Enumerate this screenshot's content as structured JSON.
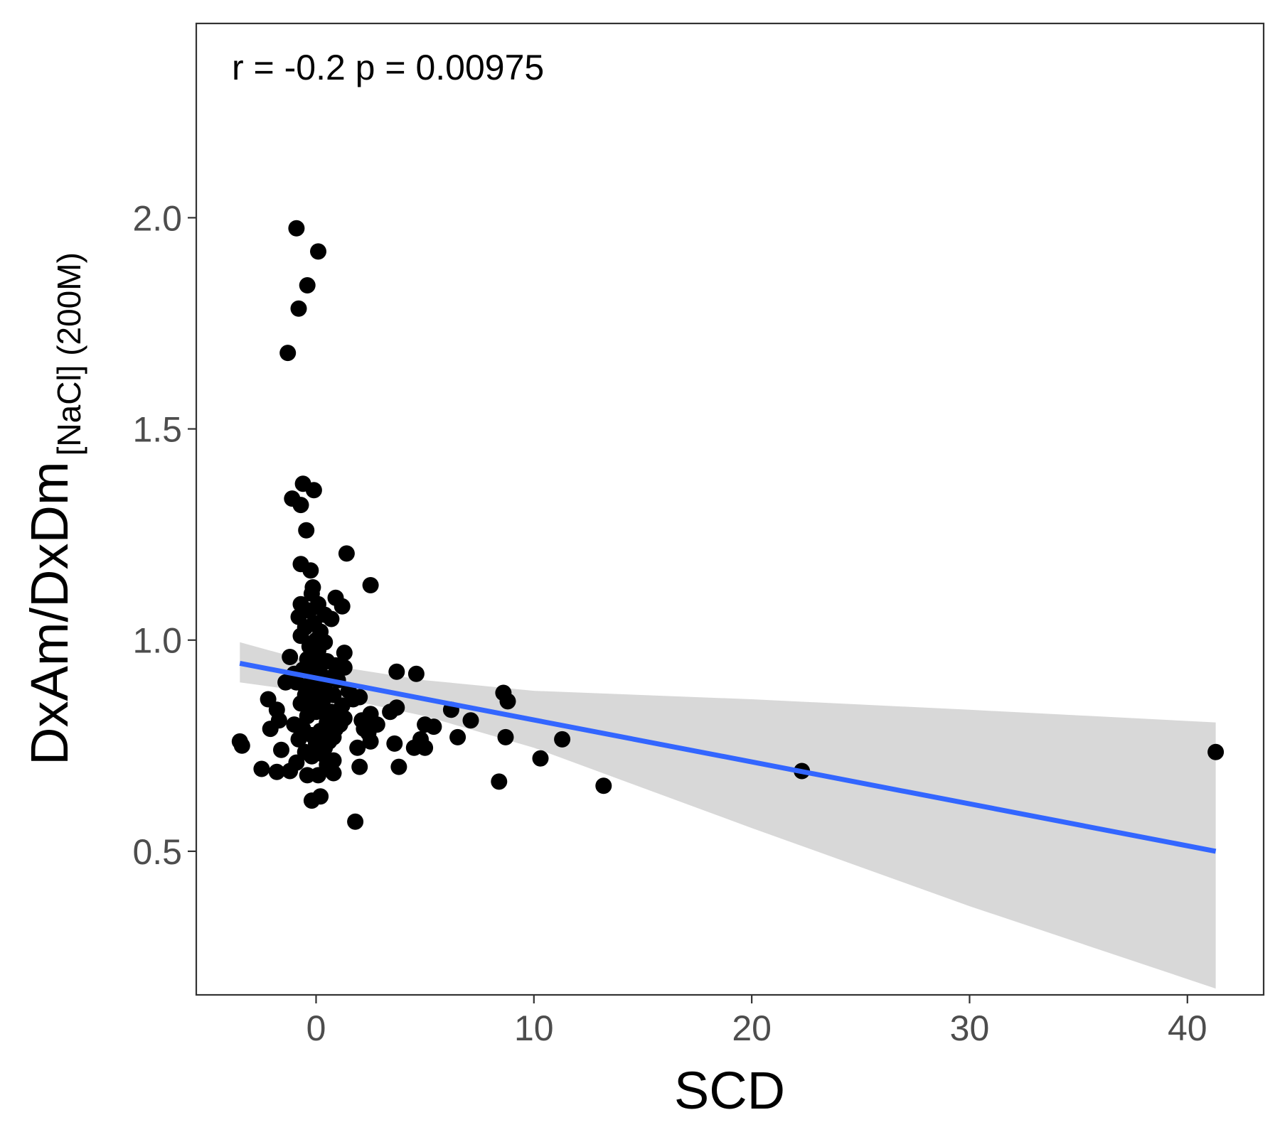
{
  "chart_data": {
    "type": "scatter",
    "title": "",
    "annotation": "r =  -0.2  p =  0.00975",
    "xlabel": "SCD",
    "ylabel": {
      "main": "DxAm/DxDm",
      "subscript": "[NaCl] (200M)"
    },
    "xlim": [
      -5.5,
      43.5
    ],
    "ylim": [
      0.16,
      2.46
    ],
    "x_ticks": [
      0,
      10,
      20,
      30,
      40
    ],
    "x_tick_labels": [
      "0",
      "10",
      "20",
      "30",
      "40"
    ],
    "y_ticks": [
      0.5,
      1.0,
      1.5,
      2.0
    ],
    "y_tick_labels": [
      "0.5",
      "1.0",
      "1.5",
      "2.0"
    ],
    "grid": false,
    "colors": {
      "points": "#000000",
      "fit_line": "#3366ff",
      "confidence_band": "#d6d6d6",
      "panel_border": "#333333"
    },
    "fit": {
      "x": [
        -3.5,
        41.3
      ],
      "y": [
        0.945,
        0.5
      ]
    },
    "band": {
      "x": [
        -3.5,
        0,
        5,
        10,
        20,
        30,
        41.3
      ],
      "upper": [
        0.995,
        0.945,
        0.905,
        0.88,
        0.86,
        0.835,
        0.805
      ],
      "lower": [
        0.9,
        0.875,
        0.82,
        0.745,
        0.555,
        0.37,
        0.175
      ]
    },
    "points": [
      {
        "x": -0.9,
        "y": 1.975
      },
      {
        "x": 0.1,
        "y": 1.92
      },
      {
        "x": -0.4,
        "y": 1.84
      },
      {
        "x": -0.8,
        "y": 1.785
      },
      {
        "x": -1.3,
        "y": 1.68
      },
      {
        "x": -0.6,
        "y": 1.37
      },
      {
        "x": -0.1,
        "y": 1.355
      },
      {
        "x": -1.1,
        "y": 1.335
      },
      {
        "x": -0.7,
        "y": 1.32
      },
      {
        "x": -0.45,
        "y": 1.26
      },
      {
        "x": 1.4,
        "y": 1.205
      },
      {
        "x": -0.7,
        "y": 1.18
      },
      {
        "x": -0.25,
        "y": 1.165
      },
      {
        "x": 2.5,
        "y": 1.13
      },
      {
        "x": -0.15,
        "y": 1.125
      },
      {
        "x": -0.2,
        "y": 1.11
      },
      {
        "x": 0.9,
        "y": 1.1
      },
      {
        "x": -0.7,
        "y": 1.085
      },
      {
        "x": 0.1,
        "y": 1.085
      },
      {
        "x": 1.2,
        "y": 1.08
      },
      {
        "x": -0.3,
        "y": 1.07
      },
      {
        "x": 0.4,
        "y": 1.06
      },
      {
        "x": -0.8,
        "y": 1.055
      },
      {
        "x": 0.7,
        "y": 1.05
      },
      {
        "x": -0.1,
        "y": 1.04
      },
      {
        "x": -0.5,
        "y": 1.03
      },
      {
        "x": 0.2,
        "y": 1.02
      },
      {
        "x": -0.7,
        "y": 1.01
      },
      {
        "x": 0.0,
        "y": 1.0
      },
      {
        "x": 0.4,
        "y": 0.995
      },
      {
        "x": -0.3,
        "y": 0.985
      },
      {
        "x": 0.1,
        "y": 0.975
      },
      {
        "x": 1.3,
        "y": 0.97
      },
      {
        "x": -1.2,
        "y": 0.96
      },
      {
        "x": -0.4,
        "y": 0.955
      },
      {
        "x": 0.5,
        "y": 0.95
      },
      {
        "x": -0.1,
        "y": 0.945
      },
      {
        "x": 0.9,
        "y": 0.94
      },
      {
        "x": 1.3,
        "y": 0.935
      },
      {
        "x": -0.6,
        "y": 0.93
      },
      {
        "x": 3.7,
        "y": 0.925
      },
      {
        "x": 4.6,
        "y": 0.92
      },
      {
        "x": 0.2,
        "y": 0.92
      },
      {
        "x": -0.2,
        "y": 0.915
      },
      {
        "x": 0.6,
        "y": 0.91
      },
      {
        "x": 1.0,
        "y": 0.905
      },
      {
        "x": -0.9,
        "y": 0.9
      },
      {
        "x": -1.4,
        "y": 0.9
      },
      {
        "x": 0.1,
        "y": 0.895
      },
      {
        "x": -0.5,
        "y": 0.89
      },
      {
        "x": 0.4,
        "y": 0.885
      },
      {
        "x": 1.5,
        "y": 0.88
      },
      {
        "x": 8.6,
        "y": 0.875
      },
      {
        "x": -0.2,
        "y": 0.875
      },
      {
        "x": 0.8,
        "y": 0.87
      },
      {
        "x": 2.0,
        "y": 0.865
      },
      {
        "x": -2.2,
        "y": 0.86
      },
      {
        "x": 8.8,
        "y": 0.855
      },
      {
        "x": 0.3,
        "y": 0.855
      },
      {
        "x": -0.7,
        "y": 0.85
      },
      {
        "x": 1.2,
        "y": 0.845
      },
      {
        "x": 3.7,
        "y": 0.84
      },
      {
        "x": -1.8,
        "y": 0.835
      },
      {
        "x": 6.2,
        "y": 0.835
      },
      {
        "x": 0.0,
        "y": 0.83
      },
      {
        "x": 3.4,
        "y": 0.83
      },
      {
        "x": 2.5,
        "y": 0.825
      },
      {
        "x": -0.4,
        "y": 0.82
      },
      {
        "x": 1.3,
        "y": 0.815
      },
      {
        "x": -1.7,
        "y": 0.81
      },
      {
        "x": 7.1,
        "y": 0.81
      },
      {
        "x": 0.5,
        "y": 0.805
      },
      {
        "x": 2.8,
        "y": 0.8
      },
      {
        "x": -1.0,
        "y": 0.8
      },
      {
        "x": 5.0,
        "y": 0.8
      },
      {
        "x": 5.4,
        "y": 0.795
      },
      {
        "x": 2.2,
        "y": 0.79
      },
      {
        "x": -2.1,
        "y": 0.79
      },
      {
        "x": 0.2,
        "y": 0.785
      },
      {
        "x": 2.4,
        "y": 0.78
      },
      {
        "x": -0.2,
        "y": 0.775
      },
      {
        "x": 0.8,
        "y": 0.77
      },
      {
        "x": 6.5,
        "y": 0.77
      },
      {
        "x": 8.7,
        "y": 0.77
      },
      {
        "x": 4.8,
        "y": 0.765
      },
      {
        "x": 11.3,
        "y": 0.765
      },
      {
        "x": -3.5,
        "y": 0.76
      },
      {
        "x": 2.5,
        "y": 0.76
      },
      {
        "x": 3.6,
        "y": 0.755
      },
      {
        "x": 0.0,
        "y": 0.755
      },
      {
        "x": -3.4,
        "y": 0.75
      },
      {
        "x": 1.9,
        "y": 0.745
      },
      {
        "x": 4.5,
        "y": 0.745
      },
      {
        "x": 5.0,
        "y": 0.745
      },
      {
        "x": -1.6,
        "y": 0.74
      },
      {
        "x": -0.5,
        "y": 0.735
      },
      {
        "x": 41.3,
        "y": 0.735
      },
      {
        "x": 0.3,
        "y": 0.73
      },
      {
        "x": -0.2,
        "y": 0.725
      },
      {
        "x": 10.3,
        "y": 0.72
      },
      {
        "x": 0.8,
        "y": 0.715
      },
      {
        "x": -0.9,
        "y": 0.71
      },
      {
        "x": 0.5,
        "y": 0.705
      },
      {
        "x": 2.0,
        "y": 0.7
      },
      {
        "x": 3.8,
        "y": 0.7
      },
      {
        "x": -2.5,
        "y": 0.695
      },
      {
        "x": 22.3,
        "y": 0.69
      },
      {
        "x": -1.2,
        "y": 0.69
      },
      {
        "x": -1.8,
        "y": 0.688
      },
      {
        "x": 0.8,
        "y": 0.685
      },
      {
        "x": -0.4,
        "y": 0.68
      },
      {
        "x": 0.1,
        "y": 0.68
      },
      {
        "x": 8.4,
        "y": 0.665
      },
      {
        "x": 13.2,
        "y": 0.655
      },
      {
        "x": 0.2,
        "y": 0.63
      },
      {
        "x": -0.2,
        "y": 0.62
      },
      {
        "x": 1.8,
        "y": 0.57
      },
      {
        "x": 0.6,
        "y": 0.81
      },
      {
        "x": 0.9,
        "y": 0.79
      },
      {
        "x": -0.6,
        "y": 0.79
      },
      {
        "x": 0.3,
        "y": 0.86
      },
      {
        "x": -0.3,
        "y": 0.845
      },
      {
        "x": 0.7,
        "y": 0.83
      },
      {
        "x": 1.1,
        "y": 0.8
      },
      {
        "x": -0.8,
        "y": 0.765
      },
      {
        "x": 0.4,
        "y": 0.745
      },
      {
        "x": -0.5,
        "y": 0.87
      },
      {
        "x": 0.1,
        "y": 0.9
      },
      {
        "x": -1.0,
        "y": 0.92
      },
      {
        "x": 1.7,
        "y": 0.86
      },
      {
        "x": 2.1,
        "y": 0.81
      },
      {
        "x": 0.6,
        "y": 0.76
      }
    ]
  }
}
